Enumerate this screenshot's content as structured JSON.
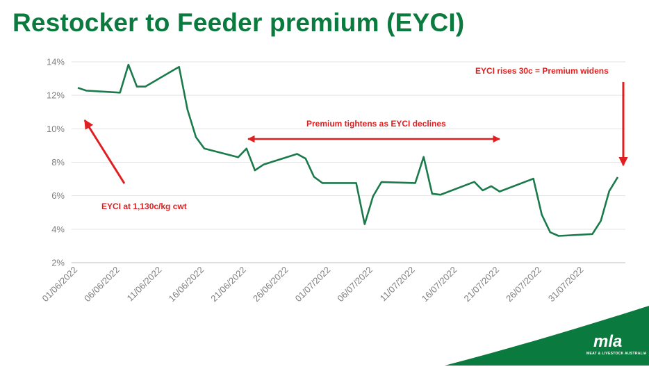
{
  "title": "Restocker to Feeder premium (EYCI)",
  "annotations": {
    "eyci_price": "EYCI at 1,130c/kg cwt",
    "tightens": "Premium tightens as EYCI declines",
    "widens": "EYCI rises 30c = Premium widens"
  },
  "logo": {
    "brand": "mla",
    "tagline": "MEAT & LIVESTOCK AUSTRALIA"
  },
  "colors": {
    "title": "#0b7a3e",
    "series": "#1b7a4b",
    "annotation": "#e02020",
    "logo_green": "#0b7a3e"
  },
  "chart_data": {
    "type": "line",
    "title": "",
    "xlabel": "",
    "ylabel": "",
    "ylim": [
      0.02,
      0.14
    ],
    "y_ticks": [
      "2%",
      "4%",
      "6%",
      "8%",
      "10%",
      "12%",
      "14%"
    ],
    "x_ticks": [
      "01/06/2022",
      "06/06/2022",
      "11/06/2022",
      "16/06/2022",
      "21/06/2022",
      "26/06/2022",
      "01/07/2022",
      "06/07/2022",
      "11/07/2022",
      "16/07/2022",
      "21/07/2022",
      "26/07/2022",
      "31/07/2022"
    ],
    "x_range": [
      "2022-06-01",
      "2022-08-04"
    ],
    "grid": "horizontal",
    "series": [
      {
        "x": [
          "2022-06-01",
          "2022-06-02",
          "2022-06-06",
          "2022-06-07",
          "2022-06-08",
          "2022-06-09",
          "2022-06-13",
          "2022-06-14",
          "2022-06-15",
          "2022-06-16",
          "2022-06-20",
          "2022-06-21",
          "2022-06-22",
          "2022-06-23",
          "2022-06-27",
          "2022-06-28",
          "2022-06-29",
          "2022-06-30",
          "2022-07-04",
          "2022-07-05",
          "2022-07-06",
          "2022-07-07",
          "2022-07-11",
          "2022-07-12",
          "2022-07-13",
          "2022-07-14",
          "2022-07-18",
          "2022-07-19",
          "2022-07-20",
          "2022-07-21",
          "2022-07-25",
          "2022-07-26",
          "2022-07-27",
          "2022-07-28",
          "2022-08-01",
          "2022-08-02",
          "2022-08-03",
          "2022-08-04"
        ],
        "values": [
          0.1245,
          0.1228,
          0.1216,
          0.1383,
          0.1252,
          0.1252,
          0.137,
          0.1115,
          0.095,
          0.0882,
          0.083,
          0.0882,
          0.0752,
          0.0786,
          0.085,
          0.0822,
          0.0713,
          0.0676,
          0.0676,
          0.043,
          0.0597,
          0.0682,
          0.0676,
          0.0832,
          0.0612,
          0.0606,
          0.0683,
          0.0632,
          0.0657,
          0.0625,
          0.0702,
          0.0487,
          0.0382,
          0.036,
          0.0371,
          0.045,
          0.0628,
          0.0711
        ]
      }
    ]
  }
}
